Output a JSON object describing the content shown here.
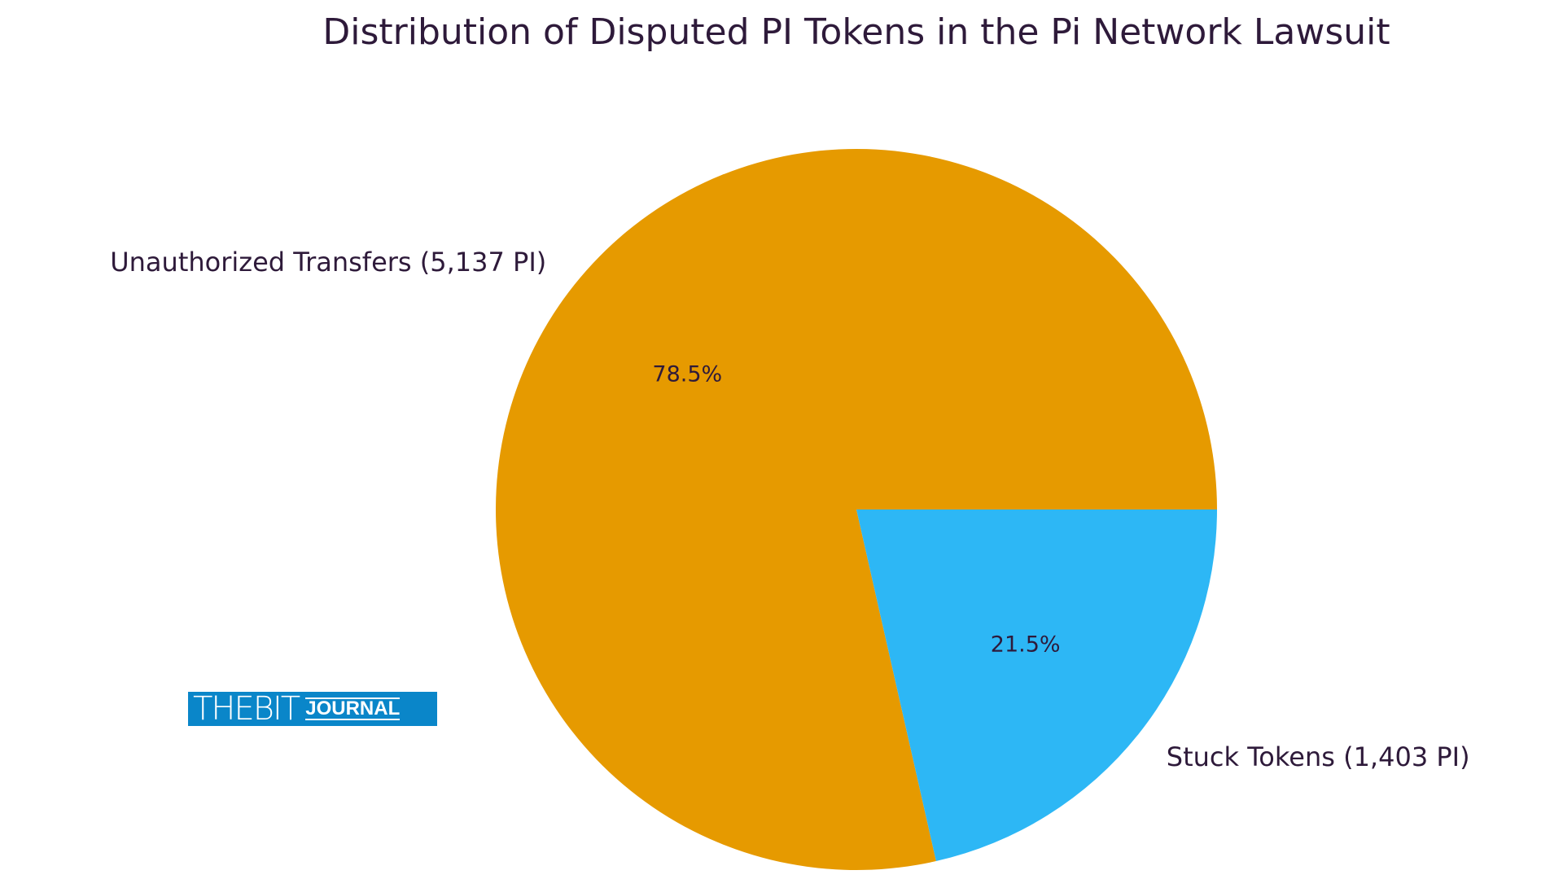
{
  "chart_data": {
    "type": "pie",
    "title": "Distribution of Disputed PI Tokens in the Pi Network Lawsuit",
    "categories": [
      "Unauthorized Transfers (5,137 PI)",
      "Stuck Tokens (1,403 PI)"
    ],
    "values": [
      5137,
      1403
    ],
    "percent_labels": [
      "78.5%",
      "21.5%"
    ],
    "colors": [
      "#e69a00",
      "#2db7f5"
    ],
    "start_angle": 0,
    "direction": "counterclockwise"
  },
  "watermark": {
    "text_light": "THEBIT",
    "text_bold": "JOURNAL",
    "color": "#0a86c9"
  }
}
